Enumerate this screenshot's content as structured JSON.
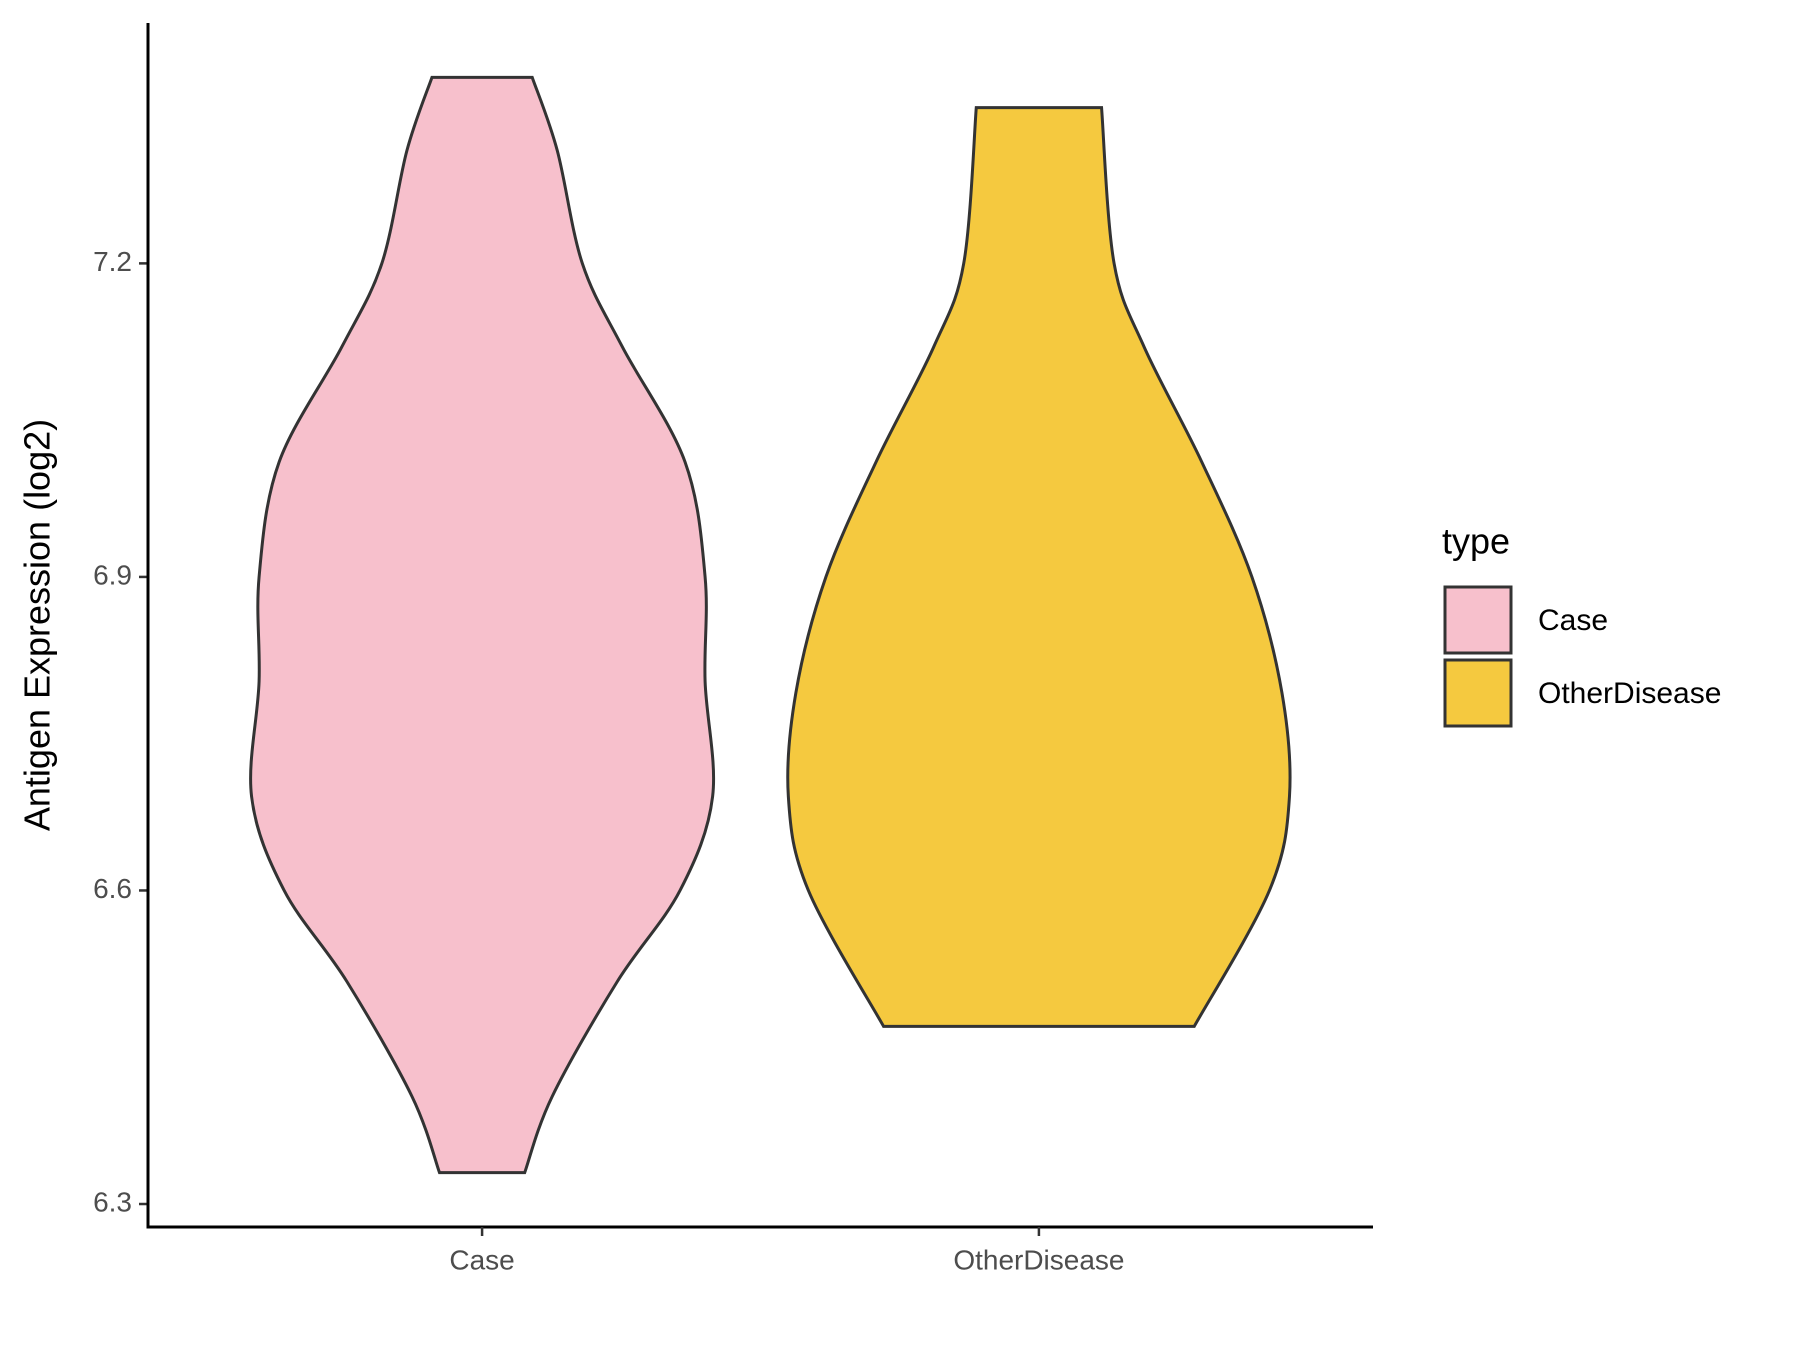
{
  "chart_data": {
    "type": "violin",
    "y_label": "Antigen Expression (log2)",
    "categories": [
      "Case",
      "OtherDisease"
    ],
    "legend_title": "type",
    "legend_position": "right",
    "ylim": [
      6.278,
      7.43
    ],
    "yticks": [
      6.3,
      6.6,
      6.9,
      7.2
    ],
    "series": [
      {
        "name": "Case",
        "color": "#f7c0cc",
        "y": [
          7.378,
          7.308,
          7.2,
          7.12,
          7.01,
          6.9,
          6.8,
          6.69,
          6.6,
          6.513,
          6.403,
          6.33
        ],
        "density": [
          0.2,
          0.3,
          0.4,
          0.56,
          0.81,
          0.89,
          0.89,
          0.92,
          0.79,
          0.54,
          0.28,
          0.17
        ]
      },
      {
        "name": "OtherDisease",
        "color": "#f5c93f",
        "y": [
          7.349,
          7.2,
          7.12,
          7.01,
          6.9,
          6.789,
          6.69,
          6.6,
          6.47
        ],
        "density": [
          0.25,
          0.3,
          0.42,
          0.65,
          0.85,
          0.97,
          1.0,
          0.92,
          0.62
        ]
      }
    ]
  }
}
